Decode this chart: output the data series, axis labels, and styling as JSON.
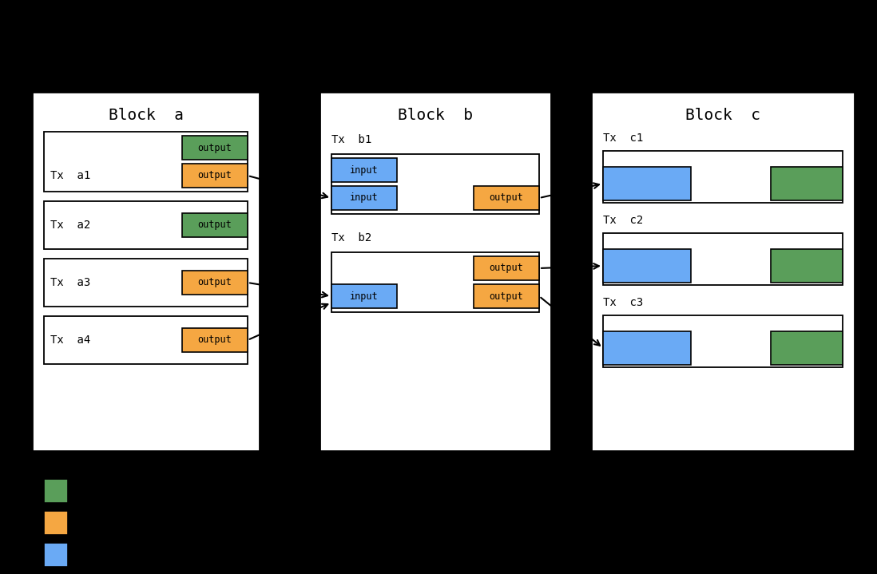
{
  "background_color": "#000000",
  "block_bg": "#ffffff",
  "green_color": "#5a9e5a",
  "orange_color": "#f5a742",
  "blue_color": "#6aaaf5",
  "font_family": "monospace",
  "block_a_title": "Block  a",
  "block_b_title": "Block  b",
  "block_c_title": "Block  c"
}
